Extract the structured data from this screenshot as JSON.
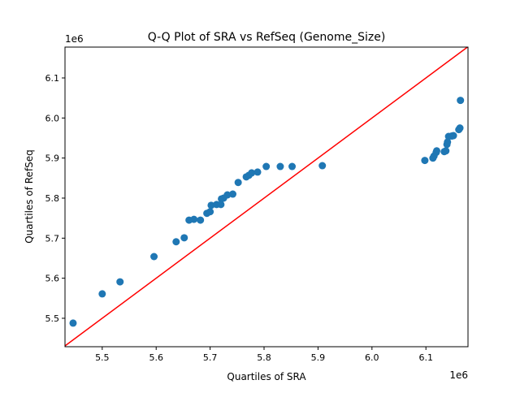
{
  "chart_data": {
    "type": "scatter",
    "title": "Q-Q Plot of SRA vs RefSeq (Genome_Size)",
    "xlabel": "Quartiles of SRA",
    "ylabel": "Quartiles of RefSeq",
    "x_offset_label": "1e6",
    "y_offset_label": "1e6",
    "xlim": [
      5.431,
      6.178
    ],
    "ylim": [
      5.429,
      6.177
    ],
    "xticks": [
      "5.5",
      "5.6",
      "5.7",
      "5.8",
      "5.9",
      "6.0",
      "6.1"
    ],
    "yticks": [
      "5.5",
      "5.6",
      "5.7",
      "5.8",
      "5.9",
      "6.0",
      "6.1"
    ],
    "grid": false,
    "marker_color": "#1f77b4",
    "line_color": "#ff0000",
    "reference_line": "y = x",
    "points": [
      [
        5.446,
        5.488
      ],
      [
        5.5,
        5.561
      ],
      [
        5.533,
        5.591
      ],
      [
        5.596,
        5.654
      ],
      [
        5.637,
        5.691
      ],
      [
        5.652,
        5.701
      ],
      [
        5.661,
        5.745
      ],
      [
        5.67,
        5.747
      ],
      [
        5.682,
        5.745
      ],
      [
        5.694,
        5.762
      ],
      [
        5.7,
        5.766
      ],
      [
        5.702,
        5.782
      ],
      [
        5.712,
        5.784
      ],
      [
        5.72,
        5.784
      ],
      [
        5.721,
        5.798
      ],
      [
        5.725,
        5.8
      ],
      [
        5.732,
        5.808
      ],
      [
        5.742,
        5.81
      ],
      [
        5.752,
        5.839
      ],
      [
        5.767,
        5.853
      ],
      [
        5.772,
        5.857
      ],
      [
        5.777,
        5.863
      ],
      [
        5.788,
        5.865
      ],
      [
        5.804,
        5.879
      ],
      [
        5.83,
        5.879
      ],
      [
        5.852,
        5.879
      ],
      [
        5.908,
        5.881
      ],
      [
        6.098,
        5.894
      ],
      [
        6.113,
        5.9
      ],
      [
        6.115,
        5.905
      ],
      [
        6.119,
        5.914
      ],
      [
        6.12,
        5.918
      ],
      [
        6.134,
        5.916
      ],
      [
        6.137,
        5.918
      ],
      [
        6.139,
        5.934
      ],
      [
        6.14,
        5.94
      ],
      [
        6.142,
        5.954
      ],
      [
        6.148,
        5.955
      ],
      [
        6.151,
        5.956
      ],
      [
        6.161,
        5.971
      ],
      [
        6.163,
        5.975
      ],
      [
        6.164,
        6.044
      ]
    ]
  }
}
